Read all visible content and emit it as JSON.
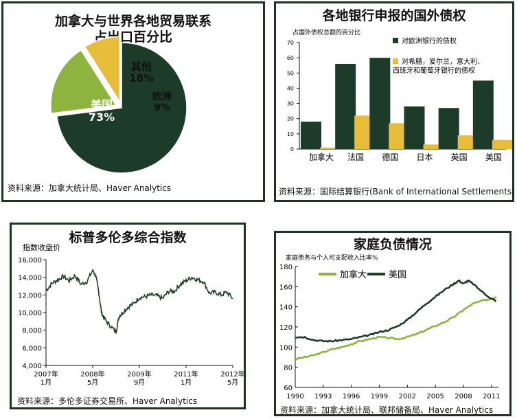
{
  "colors": {
    "dark": "#1c3b29",
    "green": "#8db43e",
    "yellow": "#e8bd39",
    "frame": "#1b3324"
  },
  "chart_data": [
    {
      "type": "pie",
      "title_line1": "加拿大与世界各地贸易联系",
      "title_line2": "占出口百分比",
      "slices": [
        {
          "name": "美国",
          "value": 73,
          "label": "73%"
        },
        {
          "name": "其他",
          "value": 18,
          "label": "18%"
        },
        {
          "name": "欧洲",
          "value": 9,
          "label": "9%"
        }
      ],
      "source": "资料来源：加拿大统计局、Haver Analytics"
    },
    {
      "type": "bar",
      "title": "各地银行申报的国外债权",
      "ylabel": "占国外债权总额的百分比",
      "categories": [
        "加拿大",
        "法国",
        "德国",
        "日本",
        "英国",
        "美国"
      ],
      "series": [
        {
          "name": "对欧洲银行的债权",
          "values": [
            18,
            56,
            60,
            28,
            27,
            45
          ]
        },
        {
          "name_line1": "对希腊，爱尔兰，意大利、",
          "name_line2": "西班牙和葡萄牙银行的债权",
          "values": [
            1,
            22,
            17,
            3,
            9,
            6
          ]
        }
      ],
      "ylim": [
        0,
        70
      ],
      "yticks": [
        0,
        10,
        20,
        30,
        40,
        50,
        60,
        70
      ],
      "source": "资料来源：国际结算银行(Bank of International Settlements)"
    },
    {
      "type": "line",
      "title": "标普多伦多综合指数",
      "ylabel": "指数收盘价",
      "ylim": [
        4000,
        16000
      ],
      "yticks": [
        "4,000",
        "6,000",
        "8,000",
        "10,000",
        "12,000",
        "14,000",
        "16,000"
      ],
      "xticks": [
        {
          "year": "2007年",
          "month": "1月"
        },
        {
          "year": "2008年",
          "month": "5月"
        },
        {
          "year": "2009年",
          "month": "9月"
        },
        {
          "year": "2011年",
          "month": "1月"
        },
        {
          "year": "2012年",
          "month": "5月"
        }
      ],
      "x_months": [
        0,
        16,
        32,
        48,
        64
      ],
      "series": [
        {
          "x": [
            0,
            2,
            4,
            6,
            8,
            10,
            12,
            14,
            16,
            17,
            18,
            19,
            20,
            22,
            24,
            25,
            26,
            28,
            30,
            32,
            34,
            36,
            38,
            40,
            42,
            44,
            46,
            48,
            50,
            52,
            54,
            56,
            58,
            60,
            62,
            64
          ],
          "y": [
            12500,
            13300,
            13700,
            14100,
            13600,
            14200,
            13200,
            13500,
            14800,
            14200,
            12500,
            10000,
            9300,
            8500,
            7800,
            9500,
            9900,
            10600,
            11000,
            11700,
            11800,
            12000,
            11900,
            11600,
            12400,
            12400,
            13200,
            13600,
            14000,
            13700,
            13500,
            12200,
            12300,
            12000,
            12300,
            11600
          ]
        }
      ],
      "source": "资料来源：多伦多证券交易所、Haver Analytics"
    },
    {
      "type": "line",
      "title": "家庭负债情况",
      "ylabel": "家庭债务与个人可支配收入比率%",
      "ylim": [
        60,
        180
      ],
      "yticks": [
        60,
        80,
        100,
        120,
        140,
        160,
        180
      ],
      "xticks": [
        "1990",
        "1993",
        "1996",
        "1999",
        "2002",
        "2005",
        "2008",
        "2011"
      ],
      "xlim": [
        1990,
        2011.75
      ],
      "series": [
        {
          "name": "加拿大",
          "x": [
            1990,
            1991,
            1992,
            1993,
            1994,
            1995,
            1996,
            1997,
            1998,
            1999,
            2000,
            2001,
            2002,
            2003,
            2004,
            2005,
            2006,
            2007,
            2008,
            2009,
            2010,
            2011,
            2011.5
          ],
          "y": [
            88,
            90,
            92,
            95,
            98,
            100,
            103,
            106,
            108,
            110,
            109,
            108,
            110,
            113,
            117,
            121,
            125,
            130,
            137,
            143,
            146,
            148,
            150
          ]
        },
        {
          "name": "美国",
          "x": [
            1990,
            1991,
            1992,
            1993,
            1994,
            1995,
            1996,
            1997,
            1998,
            1999,
            2000,
            2001,
            2002,
            2003,
            2004,
            2005,
            2006,
            2007,
            2007.5,
            2008,
            2008.5,
            2009,
            2010,
            2011,
            2011.5
          ],
          "y": [
            110,
            110,
            107,
            106,
            106,
            107,
            108,
            110,
            112,
            115,
            117,
            121,
            127,
            135,
            143,
            150,
            157,
            163,
            166,
            163,
            166,
            163,
            155,
            148,
            146
          ]
        }
      ],
      "source": "资料来源：加拿大统计局、联邦储备局、Haver Analytics"
    }
  ]
}
